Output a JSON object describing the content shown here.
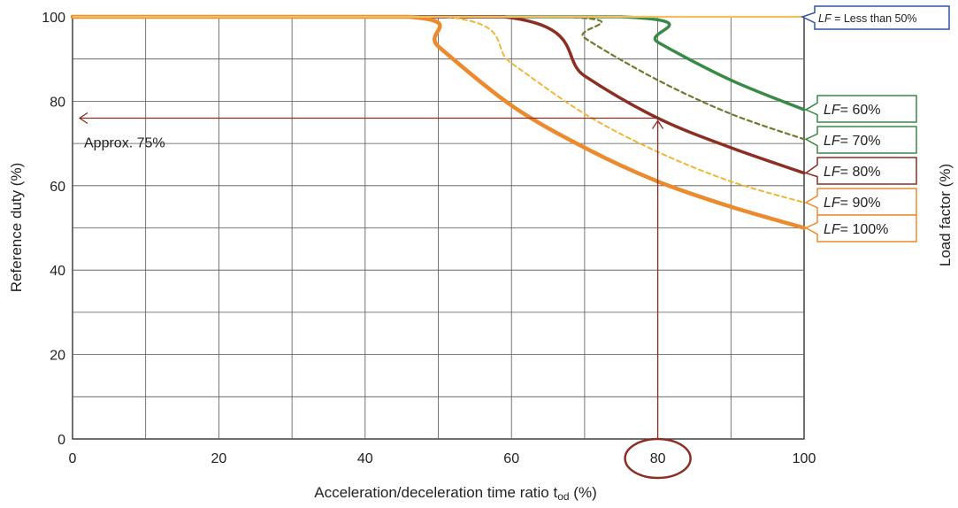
{
  "chart_data": {
    "type": "line",
    "xlabel_main": "Acceleration/deceleration time ratio t",
    "xlabel_sub": "od",
    "xlabel_unit": " (%)",
    "ylabel": "Reference duty (%)",
    "y2label": "Load factor (%)",
    "xlim": [
      0,
      100
    ],
    "ylim": [
      0,
      100
    ],
    "x_ticks": [
      "0",
      "20",
      "40",
      "60",
      "80",
      "100"
    ],
    "y_ticks": [
      "0",
      "20",
      "40",
      "60",
      "80",
      "100"
    ],
    "grid": true,
    "series": [
      {
        "lf_prefix": "LF",
        "lf_suffix": " = Less than 50%",
        "color": "#2f55a4",
        "style": "solid",
        "x": [
          0,
          100
        ],
        "y": [
          100,
          100
        ]
      },
      {
        "lf_prefix": "LF",
        "lf_suffix": "= 60%",
        "color": "#3a8a47",
        "style": "solid",
        "x": [
          0,
          75,
          80,
          90,
          100
        ],
        "y": [
          100,
          100,
          94,
          85,
          78
        ]
      },
      {
        "lf_prefix": "LF",
        "lf_suffix": "= 70%",
        "color": "#6f7a2c",
        "style": "dashed",
        "x": [
          0,
          67,
          70,
          80,
          90,
          100
        ],
        "y": [
          100,
          100,
          95,
          85,
          77,
          71
        ]
      },
      {
        "lf_prefix": "LF",
        "lf_suffix": "= 80%",
        "color": "#8b2f24",
        "style": "solid",
        "x": [
          0,
          59,
          70,
          80,
          90,
          100
        ],
        "y": [
          100,
          100,
          86,
          76,
          69,
          63
        ]
      },
      {
        "lf_prefix": "LF",
        "lf_suffix": "= 90%",
        "color": "#f0b63c",
        "style": "dashed",
        "x": [
          0,
          51,
          60,
          70,
          80,
          90,
          100
        ],
        "y": [
          100,
          100,
          89,
          77,
          68,
          61,
          56
        ]
      },
      {
        "lf_prefix": "LF",
        "lf_suffix": "= 100%",
        "color": "#ec8a2e",
        "style": "solid",
        "x": [
          0,
          46,
          50,
          60,
          70,
          80,
          90,
          100
        ],
        "y": [
          100,
          100,
          93,
          79,
          69,
          61,
          55,
          50
        ]
      }
    ],
    "annotations": {
      "approx_text": "Approx. 75%",
      "marker_x": 80,
      "marker_y": 76,
      "highlight_tick": "80"
    }
  }
}
